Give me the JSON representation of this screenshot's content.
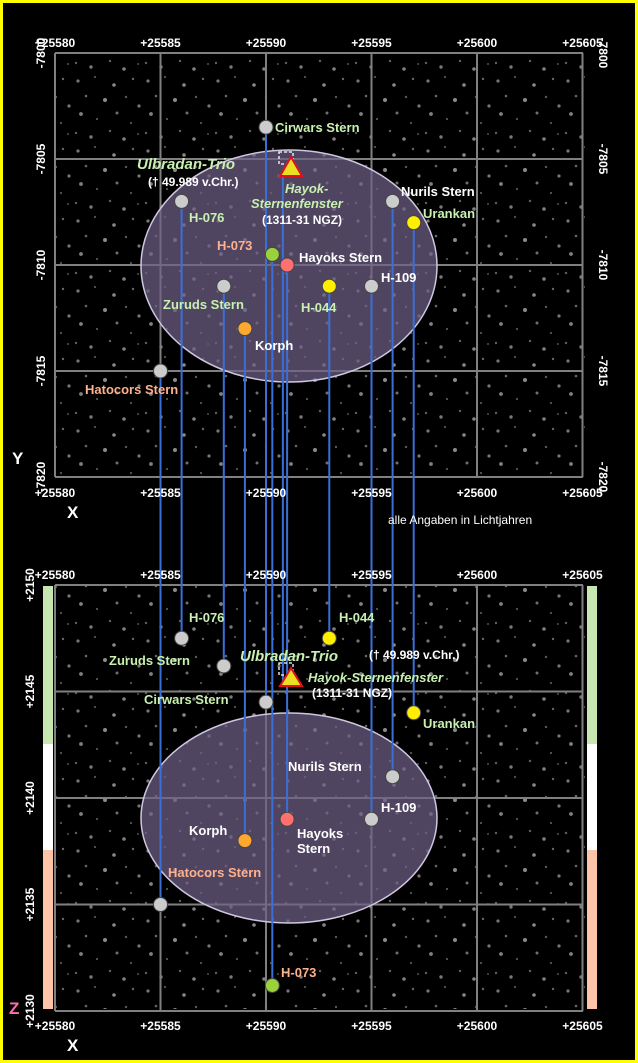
{
  "colors": {
    "frame": "#ffff00",
    "grid": "#808080",
    "ellipse": "#6f5f86",
    "connector": "#3a6fd8",
    "label_green": "#c8f0b0",
    "label_orange": "#ffb08c",
    "label_white": "#ffffff",
    "band_green": "#c8e6b0",
    "band_white": "#ffffff",
    "band_peach": "#ffc4a8"
  },
  "top_panel": {
    "axis_letter_y": "Y",
    "axis_letter_x": "X",
    "x_ticks": [
      "+25580",
      "+25585",
      "+25590",
      "+25595",
      "+25600",
      "+25605"
    ],
    "y_ticks": [
      "-7800",
      "-7805",
      "-7810",
      "-7815",
      "-7820"
    ],
    "note": "alle Angaben in Lichtjahren"
  },
  "bottom_panel": {
    "axis_letter_z": "Z",
    "axis_letter_x": "X",
    "x_ticks": [
      "+25580",
      "+25585",
      "+25590",
      "+25595",
      "+25600",
      "+25605"
    ],
    "z_ticks": [
      "+2150",
      "+2145",
      "+2140",
      "+2135",
      "+2130"
    ]
  },
  "trio": {
    "name": "Ulbradan-Trio",
    "date": "(† 49.989 v.Chr.)",
    "window_name_top": [
      "Hayok-",
      "Sternenfenster"
    ],
    "window_name_bottom": "Hayok-Sternenfenster",
    "window_date": "(1311-31 NGZ)"
  },
  "stars": [
    {
      "name": "Cirwars Stern",
      "x": 25590,
      "y": -7803.5,
      "z": 2144.5,
      "color": "#cccccc",
      "label_color": "#c8f0b0"
    },
    {
      "name": "Nurils Stern",
      "x": 25596,
      "y": -7807,
      "z": 2141,
      "color": "#cccccc",
      "label_color": "#ffffff"
    },
    {
      "name": "Urankan",
      "x": 25597,
      "y": -7808,
      "z": 2144,
      "color": "#ffee00",
      "label_color": "#c8f0b0"
    },
    {
      "name": "H-076",
      "x": 25586,
      "y": -7807,
      "z": 2147.5,
      "color": "#cccccc",
      "label_color": "#c8f0b0"
    },
    {
      "name": "H-073",
      "x": 25590.3,
      "y": -7809.5,
      "z": 2131.2,
      "color": "#9ad23c",
      "label_color": "#ffb08c"
    },
    {
      "name": "Hayoks Stern",
      "x": 25591,
      "y": -7810,
      "z": 2139,
      "color": "#ff7070",
      "label_color": "#ffffff"
    },
    {
      "name": "H-109",
      "x": 25595,
      "y": -7811,
      "z": 2139,
      "color": "#cccccc",
      "label_color": "#ffffff"
    },
    {
      "name": "H-044",
      "x": 25593,
      "y": -7811,
      "z": 2147.5,
      "color": "#ffee00",
      "label_color": "#c8f0b0"
    },
    {
      "name": "Zuruds Stern",
      "x": 25588,
      "y": -7811,
      "z": 2146.2,
      "color": "#cccccc",
      "label_color": "#c8f0b0"
    },
    {
      "name": "Korph",
      "x": 25589,
      "y": -7813,
      "z": 2138,
      "color": "#ffa830",
      "label_color": "#ffffff"
    },
    {
      "name": "Hatocors Stern",
      "x": 25585,
      "y": -7815,
      "z": 2135,
      "color": "#cccccc",
      "label_color": "#ffb08c"
    }
  ]
}
